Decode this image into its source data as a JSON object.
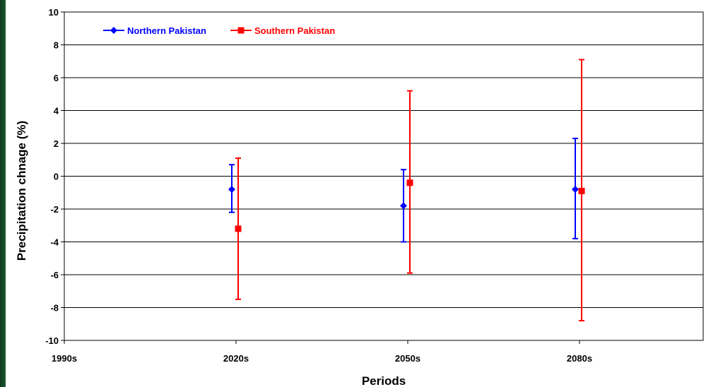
{
  "chart_data": {
    "type": "scatter",
    "title": "",
    "xlabel": "Periods",
    "ylabel": "Precipitation chnage (%)",
    "categories": [
      "1990s",
      "2020s",
      "2050s",
      "2080s"
    ],
    "ylim": [
      -10,
      10
    ],
    "yticks": [
      10,
      8,
      6,
      4,
      2,
      0,
      -2,
      -4,
      -6,
      -8,
      -10
    ],
    "grid": true,
    "legend_position": "top-left",
    "series": [
      {
        "name": "Northern Pakistan",
        "color": "#0000ff",
        "marker": "diamond",
        "points": [
          {
            "category": "2020s",
            "y": -0.8,
            "low": -2.2,
            "high": 0.7
          },
          {
            "category": "2050s",
            "y": -1.8,
            "low": -4.0,
            "high": 0.4
          },
          {
            "category": "2080s",
            "y": -0.8,
            "low": -3.8,
            "high": 2.3
          }
        ]
      },
      {
        "name": "Southern Pakistan",
        "color": "#ff0000",
        "marker": "square",
        "points": [
          {
            "category": "2020s",
            "y": -3.2,
            "low": -7.5,
            "high": 1.1
          },
          {
            "category": "2050s",
            "y": -0.4,
            "low": -5.9,
            "high": 5.2
          },
          {
            "category": "2080s",
            "y": -0.9,
            "low": -8.8,
            "high": 7.1
          }
        ]
      }
    ]
  }
}
